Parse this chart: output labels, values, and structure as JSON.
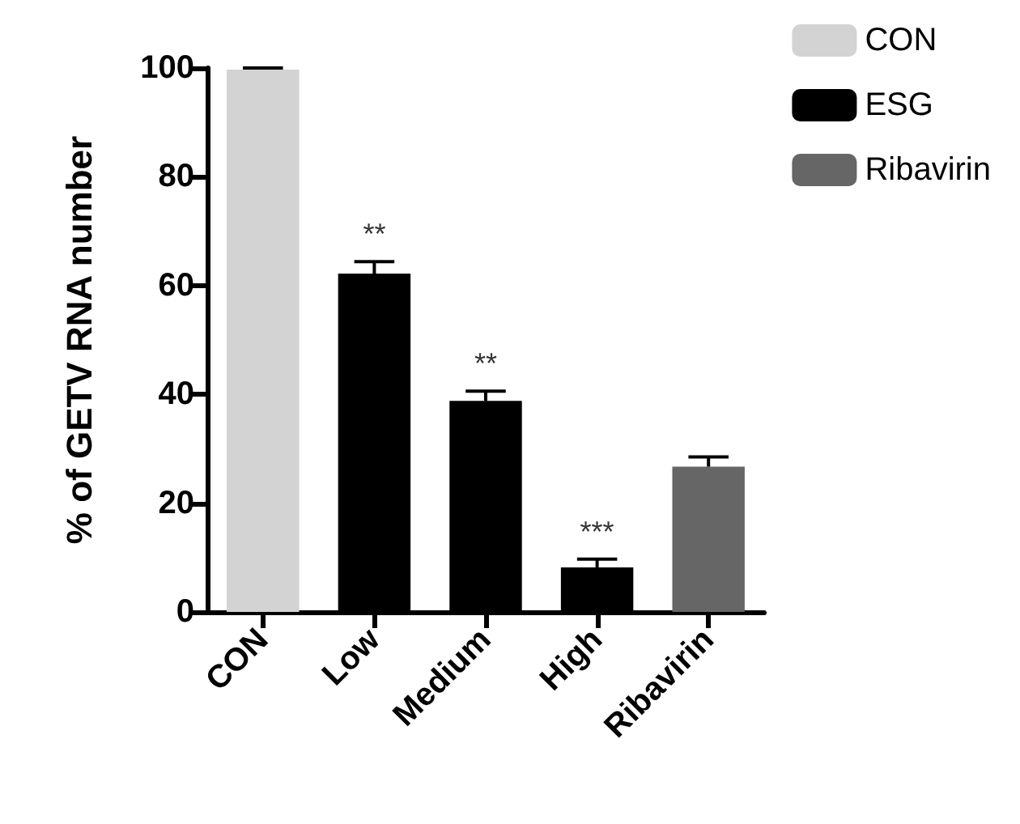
{
  "chart_data": {
    "type": "bar",
    "ylabel": "% of GETV RNA number",
    "categories": [
      "CON",
      "Low",
      "Medium",
      "High",
      "Ribavirin"
    ],
    "series": [
      {
        "name": "CON",
        "color": "#d3d3d3",
        "values": [
          99.7,
          null,
          null,
          null,
          null
        ],
        "errors": [
          [
            99.7,
            100
          ],
          null,
          null,
          null,
          null
        ]
      },
      {
        "name": "ESG",
        "color": "#000000",
        "values": [
          null,
          62.2,
          38.8,
          8.2,
          null
        ],
        "errors": [
          null,
          [
            62.2,
            64.4
          ],
          [
            38.8,
            40.6
          ],
          [
            8.2,
            9.7
          ],
          null
        ]
      },
      {
        "name": "Ribavirin",
        "color": "#666666",
        "values": [
          null,
          null,
          null,
          null,
          26.7
        ],
        "errors": [
          null,
          null,
          null,
          null,
          [
            26.7,
            28.5
          ]
        ]
      }
    ],
    "ylim": [
      0,
      100
    ],
    "yticks": [
      0,
      20,
      40,
      60,
      80,
      100
    ],
    "grid": false,
    "legend": "top right",
    "annotations": [
      {
        "text": "**",
        "x": "Low",
        "y": 64.4
      },
      {
        "text": "**",
        "x": "Medium",
        "y": 40.6
      },
      {
        "text": "***",
        "x": "High",
        "y": 9.7
      }
    ]
  }
}
